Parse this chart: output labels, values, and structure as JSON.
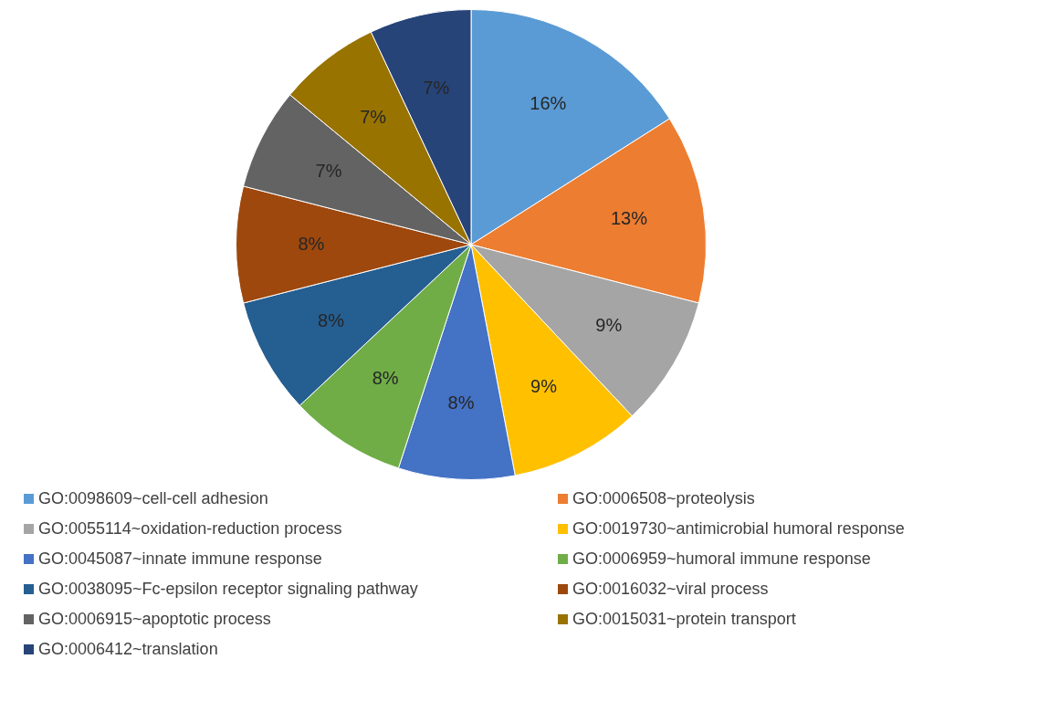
{
  "chart_data": {
    "type": "pie",
    "categories": [
      "GO:0098609~cell-cell adhesion",
      "GO:0006508~proteolysis",
      "GO:0055114~oxidation-reduction process",
      "GO:0019730~antimicrobial humoral response",
      "GO:0045087~innate immune response",
      "GO:0006959~humoral immune response",
      "GO:0038095~Fc-epsilon receptor signaling pathway",
      "GO:0016032~viral process",
      "GO:0006915~apoptotic process",
      "GO:0015031~protein transport",
      "GO:0006412~translation"
    ],
    "values": [
      16,
      13,
      9,
      9,
      8,
      8,
      8,
      8,
      7,
      7,
      7
    ],
    "colors": [
      "#5b9bd5",
      "#ed7d31",
      "#a5a5a5",
      "#ffc000",
      "#4472c4",
      "#70ad47",
      "#255e91",
      "#9e480e",
      "#636363",
      "#997300",
      "#264478"
    ],
    "value_labels": [
      "16%",
      "13%",
      "9%",
      "9%",
      "8%",
      "8%",
      "8%",
      "8%",
      "7%",
      "7%",
      "7%"
    ],
    "legend": "bottom"
  }
}
